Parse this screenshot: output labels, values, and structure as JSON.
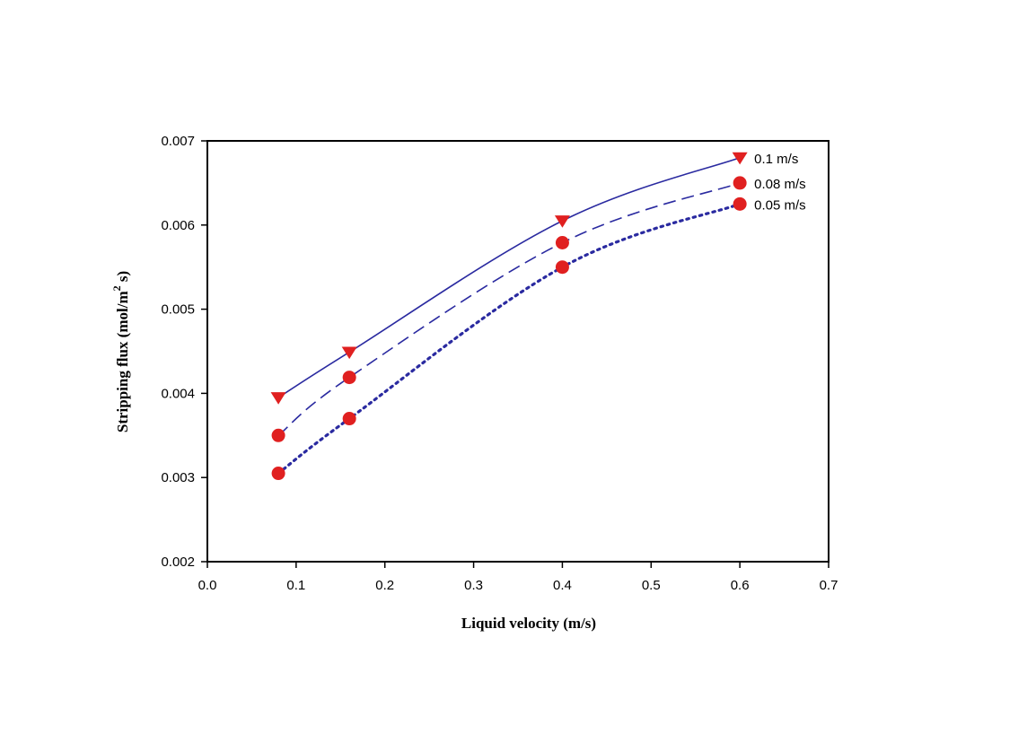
{
  "chart_data": {
    "type": "line",
    "title": "",
    "xlabel": "Liquid velocity (m/s)",
    "ylabel": {
      "main": "Stripping flux (mol/m",
      "superscript": "2",
      "tail": " s)"
    },
    "xlim": [
      0.0,
      0.7
    ],
    "ylim": [
      0.002,
      0.007
    ],
    "x_ticks": [
      "0.0",
      "0.1",
      "0.2",
      "0.3",
      "0.4",
      "0.5",
      "0.6",
      "0.7"
    ],
    "y_ticks": [
      "0.002",
      "0.003",
      "0.004",
      "0.005",
      "0.006",
      "0.007"
    ],
    "grid": false,
    "legend": "none (series labelled at line ends, right)",
    "series": [
      {
        "name": "0.1 m/s",
        "x": [
          0.08,
          0.16,
          0.4,
          0.6
        ],
        "y": [
          0.00395,
          0.00449,
          0.00605,
          0.0068
        ],
        "marker": "triangle-down",
        "line": "solid",
        "line_color": "#2a2aa0",
        "marker_color": "#e02020"
      },
      {
        "name": "0.08 m/s",
        "x": [
          0.08,
          0.16,
          0.4,
          0.6
        ],
        "y": [
          0.0035,
          0.00419,
          0.00579,
          0.0065
        ],
        "marker": "circle",
        "line": "dashed",
        "line_color": "#2a2aa0",
        "marker_color": "#e02020"
      },
      {
        "name": "0.05 m/s",
        "x": [
          0.08,
          0.16,
          0.4,
          0.6
        ],
        "y": [
          0.00305,
          0.0037,
          0.0055,
          0.00625
        ],
        "marker": "circle",
        "line": "dotted",
        "line_color": "#2a2aa0",
        "marker_color": "#e02020"
      }
    ]
  }
}
